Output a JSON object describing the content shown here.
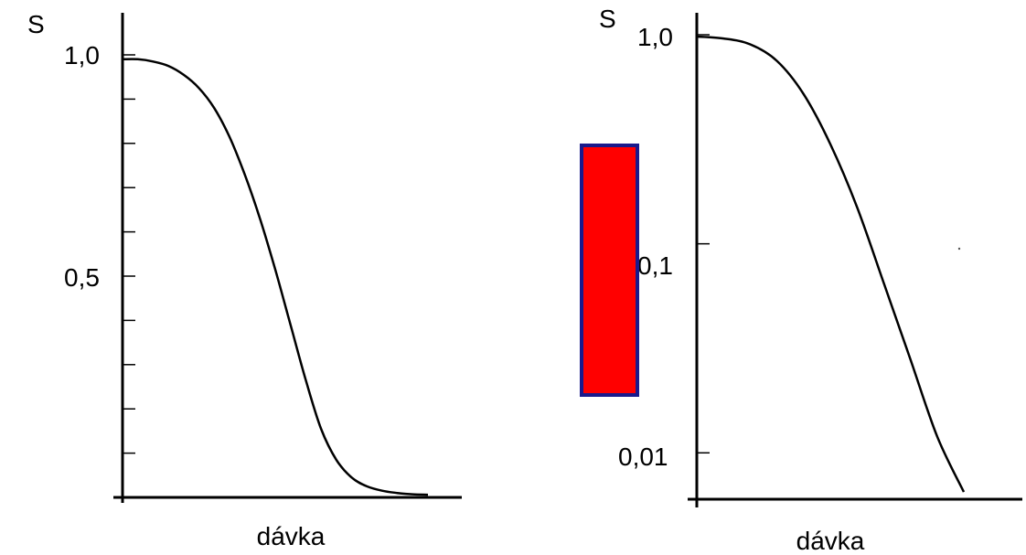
{
  "chart_data": [
    {
      "type": "line",
      "ylabel": "S",
      "xlabel": "dávka",
      "yscale": "linear",
      "ylim": [
        0,
        1.0
      ],
      "xlim": [
        0,
        1.0
      ],
      "ytick_labels": [
        {
          "value": 1.0,
          "label": "1,0"
        },
        {
          "value": 0.5,
          "label": "0,5"
        }
      ],
      "minor_ytick_values": [
        0.1,
        0.2,
        0.3,
        0.4,
        0.6,
        0.7,
        0.8,
        0.9
      ],
      "series": [
        {
          "x": [
            0.0,
            0.05,
            0.1,
            0.15,
            0.2,
            0.25,
            0.3,
            0.35,
            0.4,
            0.45,
            0.5,
            0.55,
            0.6,
            0.65,
            0.7,
            0.75,
            0.8,
            0.85,
            0.9,
            0.95,
            1.0
          ],
          "values": [
            0.99,
            0.99,
            0.985,
            0.975,
            0.955,
            0.925,
            0.88,
            0.815,
            0.73,
            0.63,
            0.515,
            0.39,
            0.265,
            0.155,
            0.085,
            0.045,
            0.025,
            0.015,
            0.01,
            0.007,
            0.006
          ]
        }
      ]
    },
    {
      "type": "line",
      "ylabel": "S",
      "xlabel": "dávka",
      "yscale": "log",
      "ylim": [
        0.006,
        1.0
      ],
      "xlim": [
        0,
        1.0
      ],
      "ytick_labels": [
        {
          "value": 1.0,
          "label": "1,0"
        },
        {
          "value": 0.1,
          "label": "0,1"
        },
        {
          "value": 0.01,
          "label": "0,01"
        }
      ],
      "series": [
        {
          "x": [
            0.0,
            0.1,
            0.2,
            0.3,
            0.4,
            0.5,
            0.6,
            0.7,
            0.8,
            0.9,
            1.0
          ],
          "values": [
            0.98,
            0.96,
            0.9,
            0.75,
            0.52,
            0.3,
            0.15,
            0.065,
            0.028,
            0.012,
            0.0065
          ]
        }
      ]
    }
  ],
  "colors": {
    "rect_fill": "#ff0000",
    "rect_stroke": "#1a1a8c"
  }
}
